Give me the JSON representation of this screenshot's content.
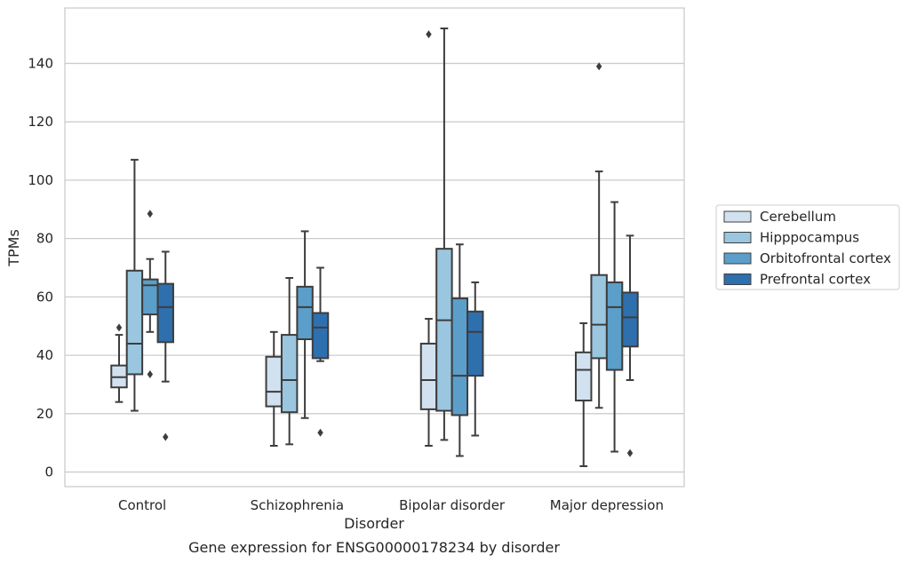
{
  "caption": "Gene expression for ENSG00000178234 by disorder",
  "chart_data": {
    "type": "box",
    "title": "",
    "xlabel": "Disorder",
    "ylabel": "TPMs",
    "ylim": [
      -5,
      159
    ],
    "yticks": [
      0,
      20,
      40,
      60,
      80,
      100,
      120,
      140
    ],
    "grid": true,
    "legend_position": "right",
    "categories": [
      "Control",
      "Schizophrenia",
      "Bipolar disorder",
      "Major depression"
    ],
    "series": [
      {
        "name": "Cerebellum",
        "color": "#d1e1f0",
        "boxes": [
          {
            "category": "Control",
            "whisker_low": 24,
            "q1": 29,
            "median": 32.5,
            "q3": 36.5,
            "whisker_high": 47,
            "outliers": [
              49.5
            ]
          },
          {
            "category": "Schizophrenia",
            "whisker_low": 9,
            "q1": 22.5,
            "median": 27.5,
            "q3": 39.5,
            "whisker_high": 48,
            "outliers": []
          },
          {
            "category": "Bipolar disorder",
            "whisker_low": 9,
            "q1": 21.5,
            "median": 31.5,
            "q3": 44,
            "whisker_high": 52.5,
            "outliers": [
              150
            ]
          },
          {
            "category": "Major depression",
            "whisker_low": 2,
            "q1": 24.5,
            "median": 35,
            "q3": 41,
            "whisker_high": 51,
            "outliers": []
          }
        ]
      },
      {
        "name": "Hipppocampus",
        "color": "#9ac6e0",
        "boxes": [
          {
            "category": "Control",
            "whisker_low": 21,
            "q1": 33.5,
            "median": 44,
            "q3": 69,
            "whisker_high": 107,
            "outliers": []
          },
          {
            "category": "Schizophrenia",
            "whisker_low": 9.5,
            "q1": 20.5,
            "median": 31.5,
            "q3": 47,
            "whisker_high": 66.5,
            "outliers": []
          },
          {
            "category": "Bipolar disorder",
            "whisker_low": 11,
            "q1": 21,
            "median": 52,
            "q3": 76.5,
            "whisker_high": 152,
            "outliers": []
          },
          {
            "category": "Major depression",
            "whisker_low": 22,
            "q1": 39,
            "median": 50.5,
            "q3": 67.5,
            "whisker_high": 103,
            "outliers": [
              139
            ]
          }
        ]
      },
      {
        "name": "Orbitofrontal cortex",
        "color": "#5b9ec9",
        "boxes": [
          {
            "category": "Control",
            "whisker_low": 48,
            "q1": 54,
            "median": 64,
            "q3": 66,
            "whisker_high": 73,
            "outliers": [
              88.5,
              33.5
            ]
          },
          {
            "category": "Schizophrenia",
            "whisker_low": 18.5,
            "q1": 45.5,
            "median": 56.5,
            "q3": 63.5,
            "whisker_high": 82.5,
            "outliers": []
          },
          {
            "category": "Bipolar disorder",
            "whisker_low": 5.5,
            "q1": 19.5,
            "median": 33,
            "q3": 59.5,
            "whisker_high": 78,
            "outliers": []
          },
          {
            "category": "Major depression",
            "whisker_low": 7,
            "q1": 35,
            "median": 56.5,
            "q3": 65,
            "whisker_high": 92.5,
            "outliers": []
          }
        ]
      },
      {
        "name": "Prefrontal cortex",
        "color": "#2e6fae",
        "boxes": [
          {
            "category": "Control",
            "whisker_low": 31,
            "q1": 44.5,
            "median": 56.5,
            "q3": 64.5,
            "whisker_high": 75.5,
            "outliers": [
              12
            ]
          },
          {
            "category": "Schizophrenia",
            "whisker_low": 38,
            "q1": 39,
            "median": 49.5,
            "q3": 54.5,
            "whisker_high": 70,
            "outliers": [
              13.5
            ]
          },
          {
            "category": "Bipolar disorder",
            "whisker_low": 12.5,
            "q1": 33,
            "median": 48,
            "q3": 55,
            "whisker_high": 65,
            "outliers": []
          },
          {
            "category": "Major depression",
            "whisker_low": 31.5,
            "q1": 43,
            "median": 53,
            "q3": 61.5,
            "whisker_high": 81,
            "outliers": [
              6.5
            ]
          }
        ]
      }
    ]
  }
}
